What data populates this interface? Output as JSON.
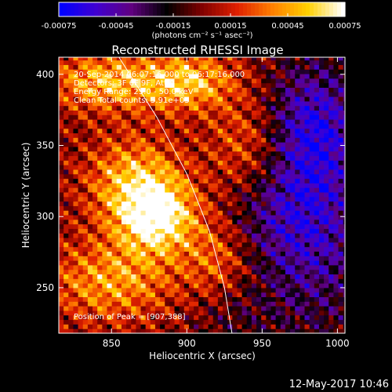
{
  "figure": {
    "title": "Reconstructed RHESSI Image",
    "timestamp": "12-May-2017 10:46",
    "annotations": [
      "20-Sep-2014 06:07:16.000 to 06:17:16.000",
      "Detectors: 3F 6F 9F, Att 0",
      "Energy Range: 25.0 - 50.0 keV",
      "Clean    Total counts: 5.91e+03"
    ],
    "peak_label": "Position of Peak = [907,388]"
  },
  "colorbar": {
    "ticks": [
      "-0.00075",
      "-0.00045",
      "-0.00015",
      "0.00015",
      "0.00045",
      "0.00075"
    ],
    "tick_values": [
      -0.00075,
      -0.00045,
      -0.00015,
      0.00015,
      0.00045,
      0.00075
    ],
    "unit_label": "(photons cm⁻² s⁻¹ asec⁻²)",
    "colormap": [
      "#0000ff",
      "#4000d0",
      "#600080",
      "#000000",
      "#800000",
      "#e02000",
      "#ff8000",
      "#ffd000",
      "#ffffff"
    ]
  },
  "chart_data": {
    "type": "heatmap",
    "title": "Reconstructed RHESSI Image",
    "xlabel": "Heliocentric X (arcsec)",
    "ylabel": "Heliocentric Y (arcsec)",
    "xlim": [
      815,
      1005
    ],
    "ylim": [
      218,
      412
    ],
    "xticks": [
      850,
      900,
      950,
      1000
    ],
    "yticks": [
      250,
      300,
      350,
      400
    ],
    "value_range": [
      -0.00075,
      0.00075
    ],
    "peak_position": [
      907,
      388
    ],
    "limb_curve": {
      "x": [
        855,
        880,
        900,
        915,
        925,
        930
      ],
      "y": [
        412,
        370,
        330,
        290,
        250,
        218
      ]
    },
    "blobs": [
      {
        "x": 880,
        "y": 300,
        "amp": 0.00075,
        "sx": 18,
        "sy": 18
      },
      {
        "x": 865,
        "y": 325,
        "amp": 0.0005,
        "sx": 22,
        "sy": 22
      },
      {
        "x": 900,
        "y": 395,
        "amp": 0.00055,
        "sx": 22,
        "sy": 14
      },
      {
        "x": 845,
        "y": 395,
        "amp": 0.0005,
        "sx": 26,
        "sy": 14
      },
      {
        "x": 850,
        "y": 255,
        "amp": 0.00045,
        "sx": 30,
        "sy": 20
      },
      {
        "x": 920,
        "y": 270,
        "amp": 0.0003,
        "sx": 16,
        "sy": 20
      },
      {
        "x": 940,
        "y": 350,
        "amp": 0.0003,
        "sx": 18,
        "sy": 24
      },
      {
        "x": 985,
        "y": 365,
        "amp": -0.0005,
        "sx": 22,
        "sy": 32
      },
      {
        "x": 985,
        "y": 290,
        "amp": -0.00045,
        "sx": 26,
        "sy": 50
      },
      {
        "x": 955,
        "y": 300,
        "amp": -0.0002,
        "sx": 22,
        "sy": 26
      },
      {
        "x": 930,
        "y": 232,
        "amp": -0.00015,
        "sx": 22,
        "sy": 18
      }
    ]
  }
}
